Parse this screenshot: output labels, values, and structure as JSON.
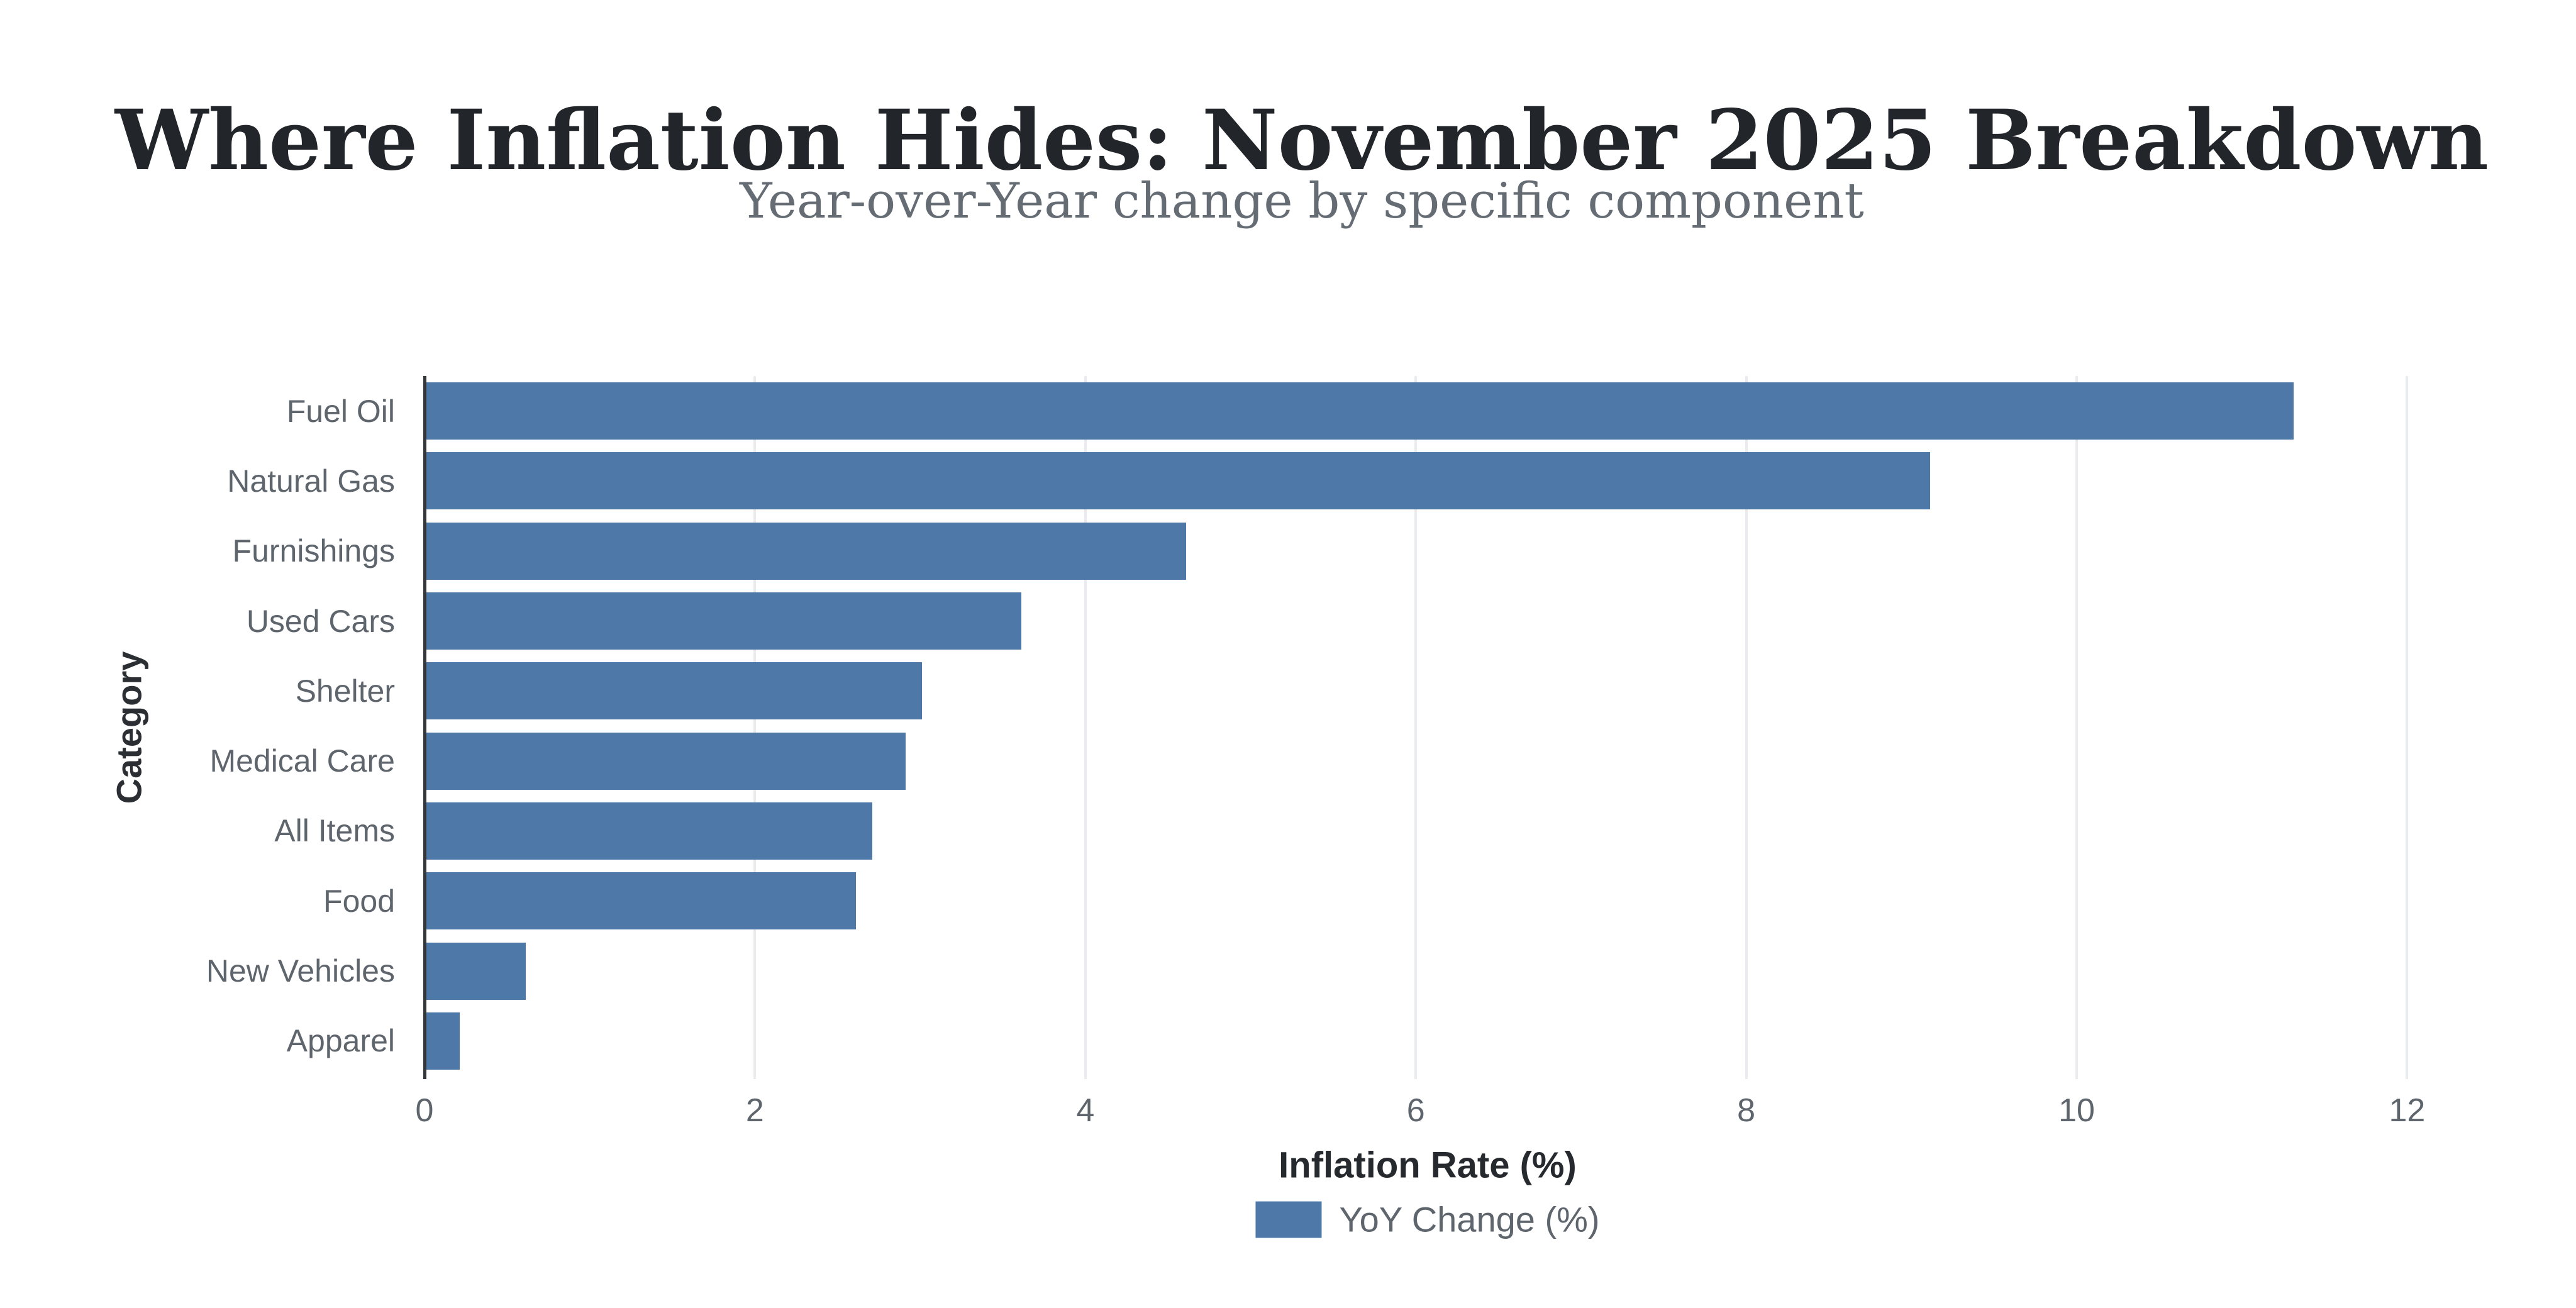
{
  "chart_data": {
    "type": "bar",
    "orientation": "horizontal",
    "title": "Where Inflation Hides: November 2025 Breakdown",
    "subtitle": "Year-over-Year change by specific component",
    "xlabel": "Inflation Rate (%)",
    "ylabel": "Category",
    "categories": [
      "Fuel Oil",
      "Natural Gas",
      "Furnishings",
      "Used Cars",
      "Shelter",
      "Medical Care",
      "All Items",
      "Food",
      "New Vehicles",
      "Apparel"
    ],
    "series": [
      {
        "name": "YoY Change (%)",
        "color": "#4d78a8",
        "values": [
          11.3,
          9.1,
          4.6,
          3.6,
          3.0,
          2.9,
          2.7,
          2.6,
          0.6,
          0.2
        ]
      }
    ],
    "xlim": [
      0,
      12
    ],
    "xticks": [
      0,
      2,
      4,
      6,
      8,
      10,
      12
    ],
    "grid": "vertical-only",
    "legend_position": "bottom-center",
    "colors": {
      "bar": "#4d78a8",
      "axis_line": "#33373c",
      "gridline": "#e9ebee",
      "title_text": "#22262b",
      "subtitle_text": "#656c74",
      "tick_text": "#5f656c",
      "axis_title_text": "#26292e",
      "background": "#ffffff"
    }
  }
}
